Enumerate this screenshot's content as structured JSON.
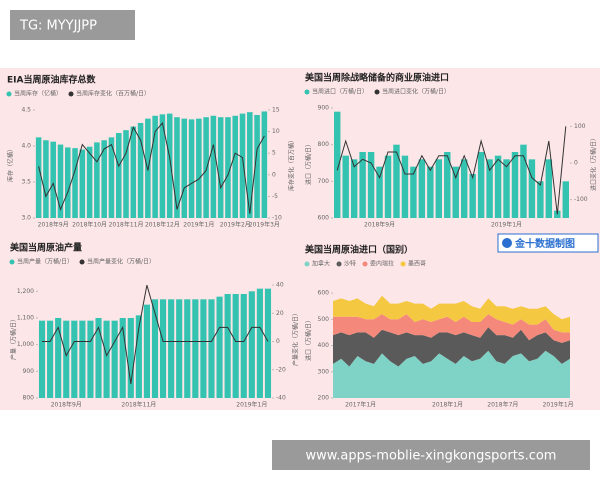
{
  "watermark_top": "TG: MYYJJPP",
  "watermark_bottom": "www.apps-moblie-xingkongsports.com",
  "logo": "金十数据制图",
  "chart_data": [
    {
      "type": "combo",
      "title": "EIA当周原油库存总数",
      "ylabel": "库存（亿桶）",
      "y2label": "库存变化（百万桶）",
      "categories": [
        null,
        null,
        "2018年9月",
        null,
        null,
        null,
        null,
        "2018年10月",
        null,
        null,
        null,
        null,
        "2018年11月",
        null,
        null,
        null,
        null,
        "2018年12月",
        null,
        null,
        null,
        null,
        "2019年1月",
        null,
        null,
        null,
        null,
        "2019年2月",
        null,
        null,
        null,
        "2019年3月"
      ],
      "series": [
        {
          "name": "当周库存（亿桶）",
          "color": "#33c3b0",
          "values": [
            4.12,
            4.08,
            4.06,
            4.02,
            3.98,
            3.97,
            3.95,
            3.99,
            4.05,
            4.08,
            4.12,
            4.18,
            4.22,
            4.27,
            4.32,
            4.38,
            4.42,
            4.44,
            4.45,
            4.4,
            4.38,
            4.37,
            4.38,
            4.4,
            4.42,
            4.4,
            4.4,
            4.42,
            4.45,
            4.47,
            4.43,
            4.48
          ]
        },
        {
          "name": "当周库存变化（百万桶/日）",
          "color": "#333333",
          "axis": "y2",
          "values": [
            2,
            -5,
            -2,
            -8,
            -4,
            1,
            7,
            5,
            3,
            6,
            7,
            2,
            5,
            11,
            8,
            1,
            10,
            12,
            4,
            -8,
            -3,
            -2,
            -1,
            1,
            7,
            -3,
            0,
            5,
            4,
            -9,
            6,
            9
          ]
        }
      ],
      "ylim": [
        3.0,
        4.5
      ],
      "yticks": [
        {
          "value": 3,
          "label": "3.0"
        },
        3.5,
        {
          "value": 4,
          "label": "4.0"
        },
        4.5
      ],
      "y2lim": [
        -10,
        15
      ],
      "y2ticks": [
        -10,
        -5,
        0,
        5,
        10,
        15
      ]
    },
    {
      "type": "combo",
      "title": "美国当周除战略储备的商业原油进口",
      "ylabel": "进口（万桶/日）",
      "y2label": "进口变化（万桶/日）",
      "categories": [
        null,
        null,
        null,
        null,
        null,
        "2018年9月",
        null,
        null,
        null,
        null,
        null,
        null,
        null,
        null,
        null,
        null,
        null,
        null,
        null,
        null,
        "2019年1月",
        null,
        null,
        null,
        null,
        null,
        null,
        null
      ],
      "series": [
        {
          "name": "当周进口（万桶/日）",
          "color": "#33c3b0",
          "values": [
            890,
            770,
            760,
            780,
            780,
            740,
            770,
            800,
            770,
            740,
            760,
            740,
            760,
            780,
            740,
            760,
            720,
            780,
            760,
            770,
            760,
            780,
            800,
            760,
            700,
            760,
            620,
            700
          ]
        },
        {
          "name": "当周进口变化（万桶/日）",
          "color": "#333333",
          "axis": "y2",
          "values": [
            -20,
            60,
            -10,
            10,
            0,
            -40,
            30,
            30,
            -30,
            -30,
            20,
            -20,
            20,
            20,
            -40,
            20,
            -40,
            60,
            -20,
            10,
            -10,
            20,
            20,
            -40,
            -60,
            60,
            -140,
            100
          ]
        }
      ],
      "ylim": [
        600,
        900
      ],
      "yticks": [
        600,
        700,
        800,
        900
      ],
      "y2lim": [
        -150,
        150
      ],
      "y2ticks": [
        -100,
        0,
        100
      ]
    },
    {
      "type": "combo",
      "title": "美国当周原油产量",
      "ylabel": "产量（万桶/日）",
      "y2label": "产量变化（万桶/日）",
      "categories": [
        null,
        null,
        null,
        "2018年9月",
        null,
        null,
        null,
        null,
        null,
        null,
        null,
        null,
        "2018年11月",
        null,
        null,
        null,
        null,
        null,
        null,
        null,
        null,
        null,
        null,
        null,
        null,
        null,
        "2019年1月",
        null,
        null
      ],
      "series": [
        {
          "name": "当周产量（万桶/日）",
          "color": "#33c3b0",
          "values": [
            1090,
            1090,
            1100,
            1090,
            1090,
            1090,
            1090,
            1100,
            1090,
            1090,
            1100,
            1100,
            1110,
            1150,
            1170,
            1170,
            1170,
            1170,
            1170,
            1170,
            1170,
            1170,
            1180,
            1190,
            1190,
            1190,
            1200,
            1210,
            1210
          ]
        },
        {
          "name": "当周产量变化（万桶/日）",
          "color": "#333333",
          "axis": "y2",
          "values": [
            0,
            0,
            10,
            -10,
            0,
            0,
            0,
            10,
            -10,
            0,
            10,
            -30,
            10,
            40,
            20,
            0,
            0,
            0,
            0,
            0,
            0,
            0,
            10,
            10,
            0,
            0,
            10,
            10,
            0
          ]
        }
      ],
      "ylim": [
        800,
        1250
      ],
      "yticks": [
        800,
        900,
        {
          "value": 1000,
          "label": "1,000"
        },
        {
          "value": 1100,
          "label": "1,100"
        },
        {
          "value": 1200,
          "label": "1,200"
        }
      ],
      "y2lim": [
        -40,
        45
      ],
      "y2ticks": [
        -40,
        -20,
        0,
        20,
        40
      ]
    },
    {
      "type": "area",
      "title": "美国当周原油进口（国别）",
      "ylabel": "进口（万桶/日）",
      "categories": [
        null,
        null,
        null,
        "2017年1月",
        null,
        null,
        null,
        null,
        null,
        null,
        null,
        null,
        null,
        null,
        "2018年1月",
        null,
        null,
        null,
        null,
        null,
        null,
        "2018年7月",
        null,
        null,
        null,
        null,
        null,
        null,
        "2019年1月",
        null
      ],
      "series": [
        {
          "name": "加拿大",
          "color": "#7fd3c6",
          "values": [
            330,
            350,
            320,
            360,
            340,
            330,
            370,
            340,
            320,
            350,
            360,
            330,
            340,
            370,
            350,
            330,
            360,
            340,
            350,
            380,
            340,
            330,
            360,
            370,
            340,
            350,
            380,
            360,
            330,
            350
          ]
        },
        {
          "name": "沙特",
          "color": "#5a5a5a",
          "values": [
            110,
            100,
            120,
            90,
            110,
            100,
            90,
            110,
            120,
            100,
            80,
            110,
            90,
            80,
            100,
            110,
            90,
            100,
            80,
            90,
            100,
            110,
            70,
            90,
            80,
            90,
            70,
            60,
            80,
            70
          ]
        },
        {
          "name": "委内瑞拉",
          "color": "#f4897b",
          "values": [
            70,
            60,
            70,
            60,
            50,
            70,
            60,
            50,
            60,
            70,
            50,
            60,
            60,
            50,
            60,
            50,
            60,
            50,
            60,
            50,
            60,
            50,
            50,
            40,
            60,
            40,
            50,
            40,
            40,
            30
          ]
        },
        {
          "name": "墨西哥",
          "color": "#f5c842",
          "values": [
            60,
            70,
            60,
            70,
            60,
            50,
            70,
            60,
            60,
            50,
            70,
            60,
            50,
            60,
            50,
            70,
            60,
            60,
            50,
            60,
            50,
            60,
            60,
            50,
            60,
            60,
            50,
            60,
            50,
            60
          ]
        }
      ],
      "ylim": [
        200,
        650
      ],
      "yticks": [
        200,
        300,
        400,
        500,
        600
      ]
    }
  ]
}
